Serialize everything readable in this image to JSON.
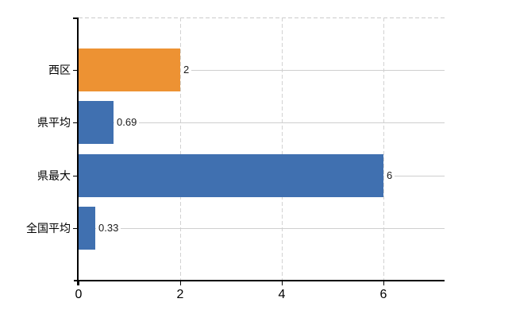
{
  "chart_data": {
    "type": "bar",
    "orientation": "horizontal",
    "title": "",
    "xlabel": "",
    "ylabel": "",
    "categories": [
      "西区",
      "県平均",
      "県最大",
      "全国平均"
    ],
    "values": [
      2,
      0.69,
      6,
      0.33
    ],
    "value_labels": [
      "2",
      "0.69",
      "6",
      "0.33"
    ],
    "bar_colors": [
      "#ed9233",
      "#4070b0",
      "#4070b0",
      "#4070b0"
    ],
    "x_ticks": [
      0,
      2,
      4,
      6
    ],
    "x_tick_labels": [
      "0",
      "2",
      "4",
      "6"
    ],
    "xlim": [
      0,
      7.2
    ],
    "grid": true,
    "legend_position": "none",
    "colors": {
      "background": "#ffffff",
      "axis": "#000000",
      "vertical_gridline": "#d2d2d2",
      "row_gridline": "#cfcfcf",
      "value_label_text": "#1a1a1a",
      "category_label_text": "#000000",
      "tick_label_text": "#000000"
    }
  }
}
